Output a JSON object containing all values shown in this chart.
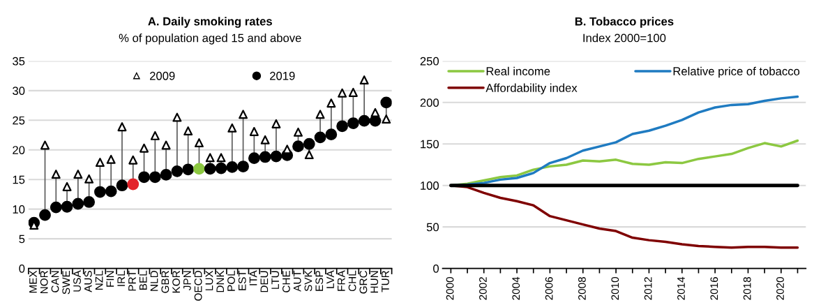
{
  "chart_data": [
    {
      "type": "scatter",
      "title": "A. Daily smoking rates",
      "subtitle": "% of population aged 15 and above",
      "categories": [
        "MEX",
        "NOR",
        "CAN",
        "SWE",
        "USA",
        "AUS",
        "NZL",
        "FIN",
        "IRL",
        "PRT",
        "BEL",
        "NLD",
        "GBR",
        "KOR",
        "JPN",
        "OECD",
        "LUX",
        "DNK",
        "POL",
        "EST",
        "ITA",
        "DEU",
        "LTU",
        "CHE",
        "AUT",
        "SVK",
        "ESP",
        "LVA",
        "FRA",
        "CHL",
        "GRC",
        "HUN",
        "TUR"
      ],
      "series": [
        {
          "name": "2009",
          "color": "#000000",
          "marker": "triangle",
          "values": [
            7.3,
            20.8,
            15.9,
            13.8,
            15.9,
            15.1,
            17.9,
            18.4,
            23.9,
            18.3,
            20.3,
            22.4,
            20.8,
            25.5,
            23.2,
            21.2,
            18.7,
            18.7,
            23.7,
            26.0,
            23.1,
            21.7,
            24.4,
            20.1,
            23.0,
            19.2,
            26.0,
            27.9,
            29.6,
            29.7,
            31.8,
            26.3,
            25.2
          ]
        },
        {
          "name": "2019",
          "color": "#000000",
          "marker": "circle",
          "colors": [
            "#000000",
            "#000000",
            "#000000",
            "#000000",
            "#000000",
            "#000000",
            "#000000",
            "#000000",
            "#000000",
            "#e3242b",
            "#000000",
            "#000000",
            "#000000",
            "#000000",
            "#000000",
            "#8cc841",
            "#000000",
            "#000000",
            "#000000",
            "#000000",
            "#000000",
            "#000000",
            "#000000",
            "#000000",
            "#000000",
            "#000000",
            "#000000",
            "#000000",
            "#000000",
            "#000000",
            "#000000",
            "#000000",
            "#000000"
          ],
          "values": [
            7.7,
            9.0,
            10.3,
            10.4,
            10.9,
            11.2,
            12.9,
            13.0,
            14.0,
            14.2,
            15.4,
            15.4,
            15.8,
            16.4,
            16.7,
            16.8,
            16.8,
            16.9,
            17.1,
            17.2,
            18.6,
            18.8,
            18.9,
            19.1,
            20.6,
            21.0,
            22.1,
            22.6,
            24.0,
            24.5,
            24.9,
            24.9,
            28.0
          ]
        }
      ],
      "ylim": [
        0,
        35
      ],
      "yticks": [
        0,
        5,
        10,
        15,
        20,
        25,
        30,
        35
      ],
      "grid": "y",
      "legend": "top"
    },
    {
      "type": "line",
      "title": "B. Tobacco prices",
      "subtitle": "Index 2000=100",
      "x": [
        2000,
        2001,
        2002,
        2003,
        2004,
        2005,
        2006,
        2007,
        2008,
        2009,
        2010,
        2011,
        2012,
        2013,
        2014,
        2015,
        2016,
        2017,
        2018,
        2019,
        2020,
        2021
      ],
      "series": [
        {
          "name": "Real income",
          "color": "#8cc841",
          "values": [
            100,
            102,
            106,
            110,
            112,
            119,
            123,
            125,
            130,
            129,
            131,
            126,
            125,
            128,
            127,
            132,
            135,
            138,
            145,
            151,
            147,
            154
          ]
        },
        {
          "name": "Relative price of tobacco",
          "color": "#1f7bc1",
          "values": [
            100,
            101,
            103,
            107,
            109,
            115,
            127,
            133,
            142,
            147,
            152,
            162,
            166,
            172,
            179,
            188,
            194,
            197,
            198,
            202,
            205,
            207
          ]
        },
        {
          "name": "Affordability index",
          "color": "#7f0000",
          "values": [
            100,
            98,
            91,
            85,
            81,
            76,
            63,
            58,
            53,
            48,
            45,
            37,
            34,
            32,
            29,
            27,
            26,
            25,
            26,
            26,
            25,
            25
          ]
        },
        {
          "color": "#000000",
          "values": [
            100,
            100,
            100,
            100,
            100,
            100,
            100,
            100,
            100,
            100,
            100,
            100,
            100,
            100,
            100,
            100,
            100,
            100,
            100,
            100,
            100,
            100
          ]
        }
      ],
      "xlim": [
        1999.5,
        2021.5
      ],
      "xticks": [
        2000,
        {
          "value": 2001,
          "label": null
        },
        2002,
        {
          "value": 2003,
          "label": null
        },
        2004,
        {
          "value": 2005,
          "label": null
        },
        2006,
        {
          "value": 2007,
          "label": null
        },
        2008,
        {
          "value": 2009,
          "label": null
        },
        2010,
        {
          "value": 2011,
          "label": null
        },
        2012,
        {
          "value": 2013,
          "label": null
        },
        2014,
        {
          "value": 2015,
          "label": null
        },
        2016,
        {
          "value": 2017,
          "label": null
        },
        2018,
        {
          "value": 2019,
          "label": null
        },
        2020,
        {
          "value": 2021,
          "label": null
        }
      ],
      "ylim": [
        0,
        250
      ],
      "yticks": [
        0,
        50,
        100,
        150,
        200,
        250
      ],
      "grid": "y",
      "legend": "top",
      "marker": "none",
      "line_style": "solid"
    }
  ]
}
